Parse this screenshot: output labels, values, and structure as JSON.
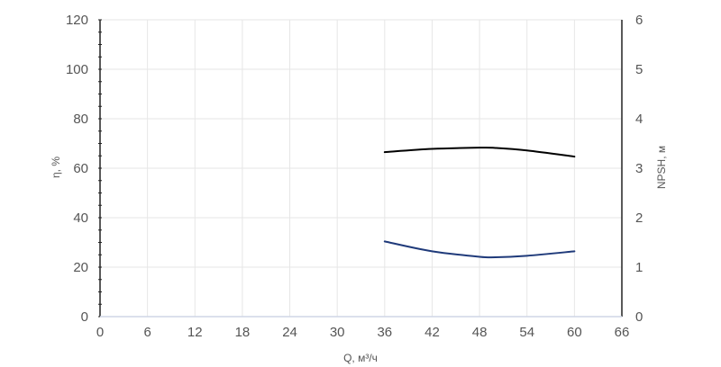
{
  "chart_data": {
    "type": "line",
    "xlabel": "Q, м³/ч",
    "ylabel_left": "η, %",
    "ylabel_right": "NPSH, м",
    "xlim": [
      0,
      66
    ],
    "ylim_left": [
      0,
      120
    ],
    "ylim_right": [
      0,
      6
    ],
    "x_ticks": [
      "0",
      "6",
      "12",
      "18",
      "24",
      "30",
      "36",
      "42",
      "48",
      "54",
      "60",
      "66"
    ],
    "y_left_ticks": [
      "0",
      "20",
      "40",
      "60",
      "80",
      "100",
      "120"
    ],
    "y_right_ticks": [
      "0",
      "1",
      "2",
      "3",
      "4",
      "5",
      "6"
    ],
    "grid": true,
    "series": [
      {
        "axis": "left",
        "color": "#000000",
        "x": [
          36,
          42,
          48,
          50,
          54,
          60
        ],
        "y": [
          66.5,
          67.8,
          68.3,
          68.2,
          67.2,
          64.7
        ]
      },
      {
        "axis": "right",
        "color": "#1f3a7a",
        "x": [
          36,
          42,
          48,
          50,
          54,
          60
        ],
        "y": [
          1.52,
          1.32,
          1.21,
          1.2,
          1.23,
          1.32
        ]
      }
    ]
  }
}
